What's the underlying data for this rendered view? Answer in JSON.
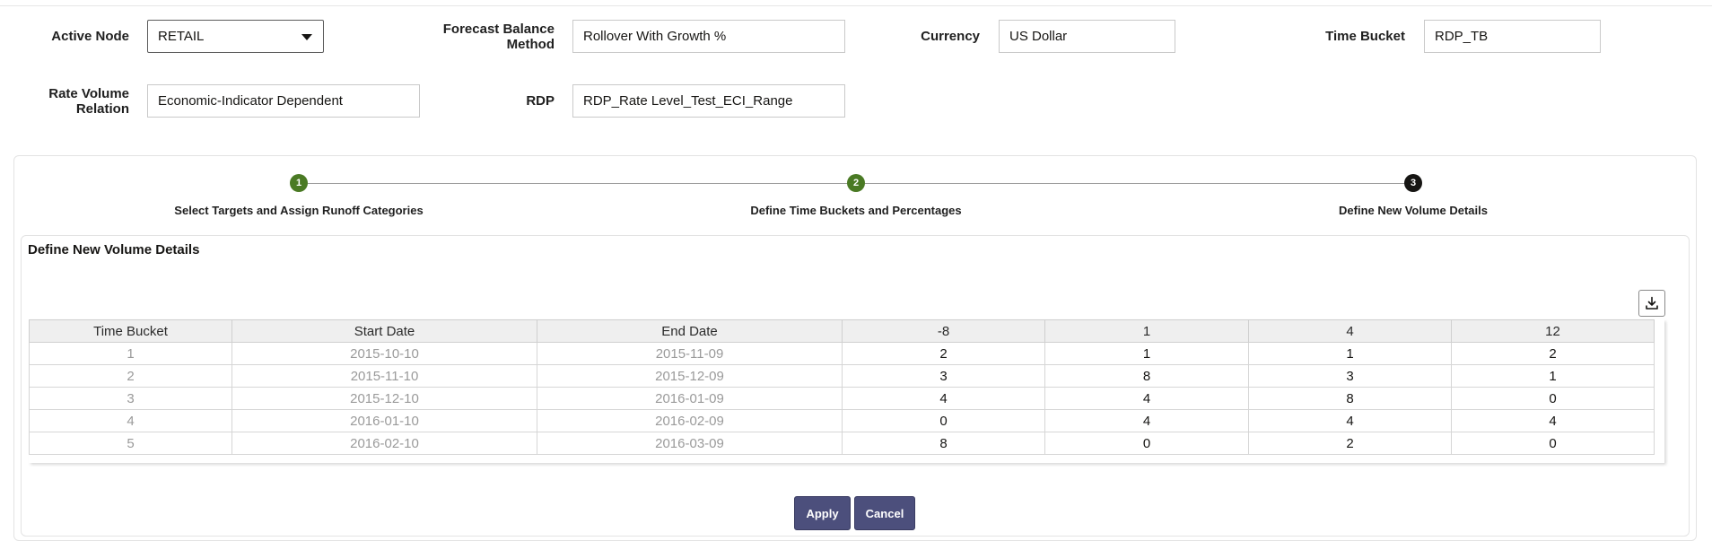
{
  "fields": {
    "active_node": {
      "label": "Active Node",
      "value": "RETAIL"
    },
    "forecast_balance_method": {
      "label_line1": "Forecast Balance",
      "label_line2": "Method",
      "value": "Rollover With Growth %"
    },
    "currency": {
      "label": "Currency",
      "value": "US Dollar"
    },
    "time_bucket": {
      "label": "Time Bucket",
      "value": "RDP_TB"
    },
    "rate_volume_relation": {
      "label_line1": "Rate Volume",
      "label_line2": "Relation",
      "value": "Economic-Indicator Dependent"
    },
    "rdp": {
      "label": "RDP",
      "value": "RDP_Rate Level_Test_ECI_Range"
    }
  },
  "train": {
    "steps": [
      {
        "number": "1",
        "label": "Select Targets and Assign Runoff Categories",
        "state": "done"
      },
      {
        "number": "2",
        "label": "Define Time Buckets and Percentages",
        "state": "done"
      },
      {
        "number": "3",
        "label": "Define New Volume Details",
        "state": "current"
      }
    ]
  },
  "section": {
    "title": "Define New Volume Details"
  },
  "download_icon": "download-icon",
  "table": {
    "headers": [
      "Time Bucket",
      "Start Date",
      "End Date",
      "-8",
      "1",
      "4",
      "12"
    ],
    "rows": [
      [
        "1",
        "2015-10-10",
        "2015-11-09",
        "2",
        "1",
        "1",
        "2"
      ],
      [
        "2",
        "2015-11-10",
        "2015-12-09",
        "3",
        "8",
        "3",
        "1"
      ],
      [
        "3",
        "2015-12-10",
        "2016-01-09",
        "4",
        "4",
        "8",
        "0"
      ],
      [
        "4",
        "2016-01-10",
        "2016-02-09",
        "0",
        "4",
        "4",
        "4"
      ],
      [
        "5",
        "2016-02-10",
        "2016-03-09",
        "8",
        "0",
        "2",
        "0"
      ]
    ]
  },
  "buttons": {
    "apply": "Apply",
    "cancel": "Cancel"
  },
  "colors": {
    "step_done": "#4a7a24",
    "step_current": "#161513",
    "button_bg": "#4c4f7c"
  }
}
